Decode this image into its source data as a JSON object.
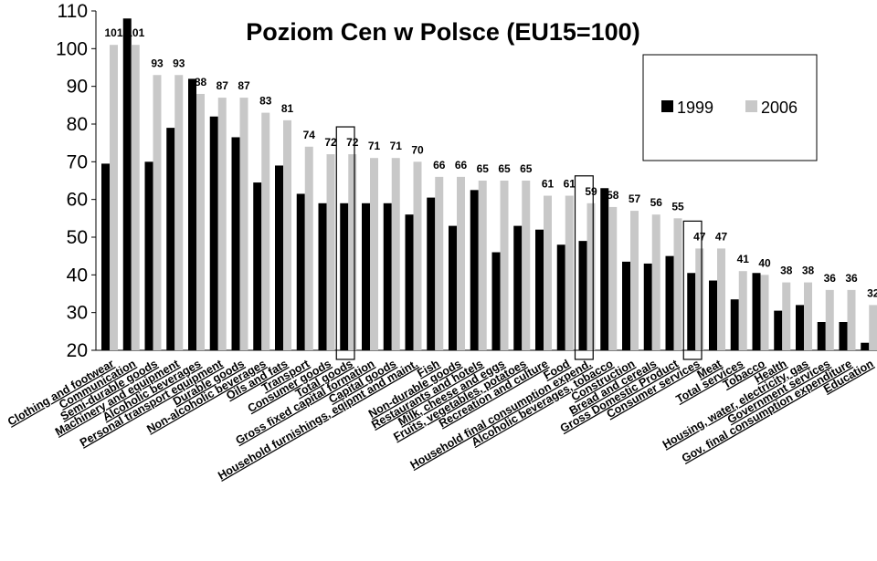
{
  "chart_data": {
    "type": "bar",
    "title": "Poziom Cen w Polsce (EU15=100)",
    "xlabel": "",
    "ylabel": "",
    "ylim": [
      20,
      110
    ],
    "yticks": [
      20,
      30,
      40,
      50,
      60,
      70,
      80,
      90,
      100,
      110
    ],
    "grid": false,
    "legend_position": "top-right",
    "categories": [
      "Clothing and footwear",
      "Communication",
      "Semi-durable goods",
      "Machinery and equipment",
      "Alcoholic beverages",
      "Personal transport equipment",
      "Durable goods",
      "Non-alcoholic beverages",
      "Oils and fats",
      "Transport",
      "Consumer goods",
      "Total goods",
      "Gross fixed capital formation",
      "Capital goods",
      "Household furnishings, eqipmt and maint.",
      "Fish",
      "Non-durable goods",
      "Restaurants and hotels",
      "Milk, cheese and eggs",
      "Fruits, vegetables, potatoes",
      "Recreation and culture",
      "Food",
      "Household final consumption expend.",
      "Alcoholic beverages, tobacco",
      "Construction",
      "Bread and cereals",
      "Gross Domestic Product",
      "Consumer services",
      "Meat",
      "Total services",
      "Tobacco",
      "Health",
      "Housing, water, electricity, gas",
      "Government services",
      "Gov. final consumption expenditure",
      "Education"
    ],
    "series": [
      {
        "name": "1999",
        "color": "#000000",
        "values": [
          69.5,
          108,
          70,
          79,
          92,
          82,
          76.5,
          64.5,
          69,
          61.5,
          59,
          59,
          59,
          59,
          56,
          60.5,
          53,
          62.5,
          46,
          53,
          52,
          48,
          49,
          63,
          43.5,
          43,
          45,
          40.5,
          38.5,
          33.5,
          40.5,
          30.5,
          32,
          27.5,
          27.5,
          22
        ]
      },
      {
        "name": "2006",
        "color": "#c8c8c8",
        "values": [
          101,
          101,
          93,
          93,
          88,
          87,
          87,
          83,
          81,
          74,
          72,
          72,
          71,
          71,
          70,
          66,
          66,
          65,
          65,
          65,
          61,
          61,
          59,
          58,
          57,
          56,
          55,
          47,
          47,
          41,
          40,
          38,
          38,
          36,
          36,
          32
        ]
      }
    ],
    "data_labels_2006": [
      "101",
      "101",
      "93",
      "93",
      "88",
      "87",
      "87",
      "83",
      "81",
      "74",
      "72",
      "72",
      "71",
      "71",
      "70",
      "66",
      "66",
      "65",
      "65",
      "65",
      "61",
      "61",
      "59",
      "58",
      "57",
      "56",
      "55",
      "47",
      "47",
      "41",
      "40",
      "38",
      "38",
      "36",
      "36",
      "32"
    ],
    "highlighted_categories": [
      "Total goods",
      "Household final consumption expend.",
      "Consumer services"
    ]
  }
}
